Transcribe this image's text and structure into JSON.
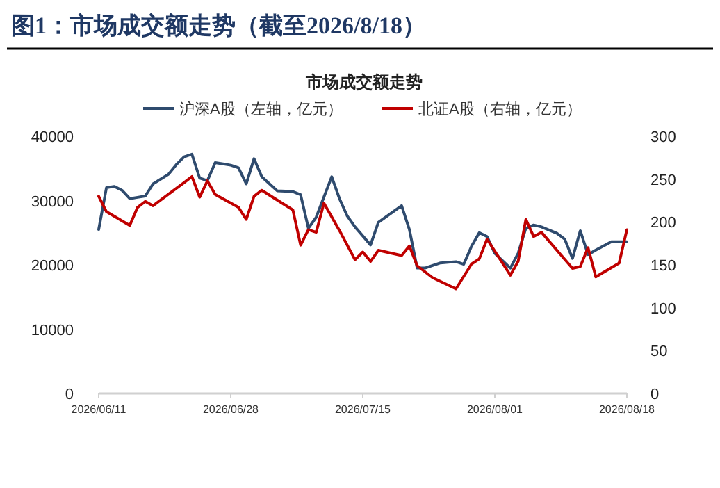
{
  "chart_data": {
    "type": "line",
    "title": "图1：市场成交额走势（截至2026/8/18）",
    "subtitle": "市场成交额走势",
    "legend": "top",
    "xlim": [
      "2026-06-11",
      "2026-08-18"
    ],
    "xticks": [
      {
        "value": "2026-06-11",
        "label": "2026/06/11"
      },
      {
        "value": "2026-06-28",
        "label": "2026/06/28"
      },
      {
        "value": "2026-07-15",
        "label": "2026/07/15"
      },
      {
        "value": "2026-08-01",
        "label": "2026/08/01"
      },
      {
        "value": "2026-08-18",
        "label": "2026/08/18"
      }
    ],
    "ylim": [
      0,
      40000
    ],
    "yticks": [
      0,
      10000,
      20000,
      30000,
      40000
    ],
    "y2lim": [
      0,
      300
    ],
    "y2ticks": [
      0,
      50,
      100,
      150,
      200,
      250,
      300
    ],
    "series": [
      {
        "name": "沪深A股（左轴，亿元）",
        "color": "#2f4b6e",
        "axis": "y",
        "x": [
          "2026-06-11",
          "2026-06-12",
          "2026-06-13",
          "2026-06-14",
          "2026-06-15",
          "2026-06-16",
          "2026-06-17",
          "2026-06-18",
          "2026-06-20",
          "2026-06-21",
          "2026-06-22",
          "2026-06-23",
          "2026-06-24",
          "2026-06-25",
          "2026-06-26",
          "2026-06-27",
          "2026-06-28",
          "2026-06-29",
          "2026-06-30",
          "2026-07-01",
          "2026-07-02",
          "2026-07-03",
          "2026-07-04",
          "2026-07-06",
          "2026-07-07",
          "2026-07-08",
          "2026-07-09",
          "2026-07-11",
          "2026-07-12",
          "2026-07-13",
          "2026-07-14",
          "2026-07-16",
          "2026-07-17",
          "2026-07-20",
          "2026-07-21",
          "2026-07-22",
          "2026-07-23",
          "2026-07-25",
          "2026-07-27",
          "2026-07-28",
          "2026-07-29",
          "2026-07-30",
          "2026-07-31",
          "2026-08-01",
          "2026-08-03",
          "2026-08-04",
          "2026-08-05",
          "2026-08-06",
          "2026-08-07",
          "2026-08-09",
          "2026-08-10",
          "2026-08-11",
          "2026-08-12",
          "2026-08-13",
          "2026-08-14",
          "2026-08-16",
          "2026-08-18"
        ],
        "values": [
          25500,
          32000,
          32200,
          31600,
          30300,
          30500,
          30700,
          32600,
          34100,
          35600,
          36800,
          37200,
          33500,
          33100,
          35900,
          35700,
          35500,
          35100,
          32600,
          36500,
          33700,
          32600,
          31500,
          31400,
          30900,
          25700,
          27400,
          33700,
          30300,
          27600,
          25900,
          23100,
          26600,
          29200,
          25500,
          19500,
          19500,
          20300,
          20500,
          20100,
          22900,
          25000,
          24400,
          21800,
          19500,
          21800,
          25700,
          26200,
          25900,
          24900,
          24000,
          21000,
          25300,
          21600,
          22300,
          23600,
          23600
        ]
      },
      {
        "name": "北证A股（右轴，亿元）",
        "color": "#c00000",
        "axis": "y2",
        "x": [
          "2026-06-11",
          "2026-06-12",
          "2026-06-15",
          "2026-06-16",
          "2026-06-17",
          "2026-06-18",
          "2026-06-22",
          "2026-06-23",
          "2026-06-24",
          "2026-06-25",
          "2026-06-26",
          "2026-06-29",
          "2026-06-30",
          "2026-07-01",
          "2026-07-02",
          "2026-07-06",
          "2026-07-07",
          "2026-07-08",
          "2026-07-09",
          "2026-07-10",
          "2026-07-12",
          "2026-07-14",
          "2026-07-15",
          "2026-07-16",
          "2026-07-17",
          "2026-07-20",
          "2026-07-21",
          "2026-07-22",
          "2026-07-24",
          "2026-07-27",
          "2026-07-29",
          "2026-07-30",
          "2026-07-31",
          "2026-08-03",
          "2026-08-04",
          "2026-08-05",
          "2026-08-06",
          "2026-08-07",
          "2026-08-11",
          "2026-08-12",
          "2026-08-13",
          "2026-08-14",
          "2026-08-17",
          "2026-08-18"
        ],
        "values": [
          230,
          212,
          196,
          217,
          224,
          219,
          246,
          253,
          229,
          248,
          232,
          217,
          203,
          230,
          237,
          214,
          173,
          191,
          188,
          222,
          190,
          156,
          165,
          154,
          167,
          161,
          172,
          149,
          135,
          122,
          151,
          157,
          180,
          138,
          154,
          203,
          183,
          188,
          146,
          148,
          170,
          136,
          152,
          191
        ]
      }
    ]
  }
}
